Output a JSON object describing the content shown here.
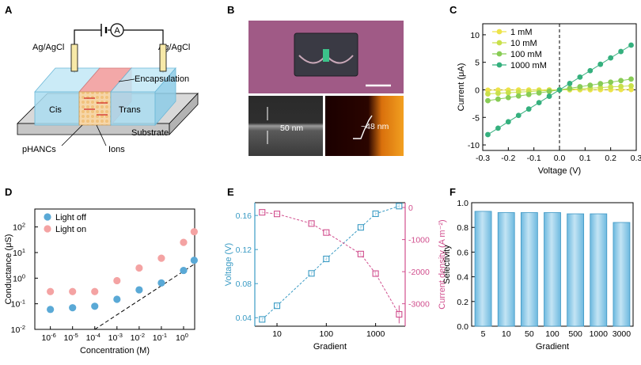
{
  "panels": {
    "A": {
      "label": "A",
      "electrode_left": "Ag/AgCl",
      "electrode_right": "Ag/AgCl",
      "ammeter": "A",
      "encapsulation": "Encapsulation",
      "cis": "Cis",
      "trans": "Trans",
      "substrate": "Substrate",
      "phancs": "pHANCs",
      "ions": "Ions"
    },
    "B": {
      "label": "B",
      "sem_thickness": "50 nm",
      "afm_thickness": "~48 nm"
    },
    "C": {
      "label": "C"
    },
    "D": {
      "label": "D"
    },
    "E": {
      "label": "E"
    },
    "F": {
      "label": "F"
    }
  },
  "chart_data": [
    {
      "id": "C",
      "type": "scatter",
      "xlabel": "Voltage (V)",
      "ylabel": "Current (μA)",
      "xlim": [
        -0.3,
        0.3
      ],
      "ylim": [
        -11,
        12
      ],
      "xticks": [
        "-0.3",
        "-0.2",
        "-0.1",
        "0.0",
        "0.1",
        "0.2",
        "0.3"
      ],
      "yticks": [
        "-10",
        "-5",
        "0",
        "5",
        "10"
      ],
      "legend_position": "top-right",
      "x": [
        -0.28,
        -0.24,
        -0.2,
        -0.16,
        -0.12,
        -0.08,
        -0.04,
        0.0,
        0.04,
        0.08,
        0.12,
        0.16,
        0.2,
        0.24,
        0.28
      ],
      "series": [
        {
          "name": "1 mM",
          "color": "#ede34a",
          "slope": 0.2
        },
        {
          "name": "10 mM",
          "color": "#c9e04b",
          "slope": 2.6
        },
        {
          "name": "100 mM",
          "color": "#88cc55",
          "slope": 7.0
        },
        {
          "name": "1000 mM",
          "color": "#35b07e",
          "slope": 29.0
        }
      ]
    },
    {
      "id": "D",
      "type": "scatter",
      "xlabel": "Concentration (M)",
      "ylabel": "Conductance (μS)",
      "xscale": "log",
      "yscale": "log",
      "xlim_exp": [
        -6.7,
        0.5
      ],
      "ylim_exp": [
        -2,
        2.7
      ],
      "xtick_exps": [
        "-6",
        "-5",
        "-4",
        "-3",
        "-2",
        "-1",
        "0"
      ],
      "ytick_exps": [
        "-2",
        "-1",
        "0",
        "1",
        "2"
      ],
      "tick_base": "10",
      "legend_position": "top-left",
      "x": [
        1e-06,
        1e-05,
        0.0001,
        0.001,
        0.01,
        0.1,
        1,
        3
      ],
      "series": [
        {
          "name": "Light off",
          "color": "#5aa9d6",
          "values": [
            0.06,
            0.07,
            0.08,
            0.15,
            0.35,
            0.65,
            2.0,
            5.0
          ]
        },
        {
          "name": "Light on",
          "color": "#f4a3a3",
          "values": [
            0.3,
            0.3,
            0.3,
            0.8,
            2.5,
            6.0,
            25,
            65
          ]
        }
      ],
      "reference_line": {
        "x": [
          0.0001,
          3
        ],
        "y": [
          0.01,
          3.5
        ]
      }
    },
    {
      "id": "E",
      "type": "line",
      "xlabel": "Gradient",
      "ylabel_left": "Voltage (V)",
      "ylabel_right": "Current density (A m⁻²)",
      "xscale": "log",
      "xlim_exp": [
        0.55,
        3.6
      ],
      "xticks": [
        {
          "label": "10",
          "value": 10
        },
        {
          "label": "100",
          "value": 100
        },
        {
          "label": "1000",
          "value": 1000
        }
      ],
      "ylim_left": [
        0.03,
        0.175
      ],
      "ylim_right": [
        -3700,
        150
      ],
      "yticks_left": [
        "0.04",
        "0.08",
        "0.12",
        "0.16"
      ],
      "yticks_right": [
        "0",
        "-1000",
        "-2000",
        "-3000"
      ],
      "x": [
        5,
        10,
        50,
        100,
        500,
        1000,
        3000
      ],
      "series": [
        {
          "name": "Voltage",
          "axis": "left",
          "color": "#3a9bc4",
          "values": [
            0.038,
            0.054,
            0.092,
            0.109,
            0.146,
            0.162,
            0.171
          ],
          "errors": [
            0.002,
            0.002,
            0.002,
            0.002,
            0.002,
            0.002,
            0.002
          ]
        },
        {
          "name": "Current density",
          "axis": "right",
          "color": "#d14f8e",
          "values": [
            -150,
            -200,
            -500,
            -780,
            -1450,
            -2060,
            -3330
          ],
          "errors": [
            40,
            40,
            50,
            60,
            60,
            80,
            280
          ]
        }
      ]
    },
    {
      "id": "F",
      "type": "bar",
      "xlabel": "Gradient",
      "ylabel": "Selectivity",
      "ylim": [
        0,
        1.0
      ],
      "yticks": [
        "0.0",
        "0.2",
        "0.4",
        "0.6",
        "0.8",
        "1.0"
      ],
      "categories": [
        "5",
        "10",
        "50",
        "100",
        "500",
        "1000",
        "3000"
      ],
      "values": [
        0.93,
        0.92,
        0.92,
        0.92,
        0.91,
        0.91,
        0.84
      ],
      "color": "#9dd0ea"
    }
  ]
}
